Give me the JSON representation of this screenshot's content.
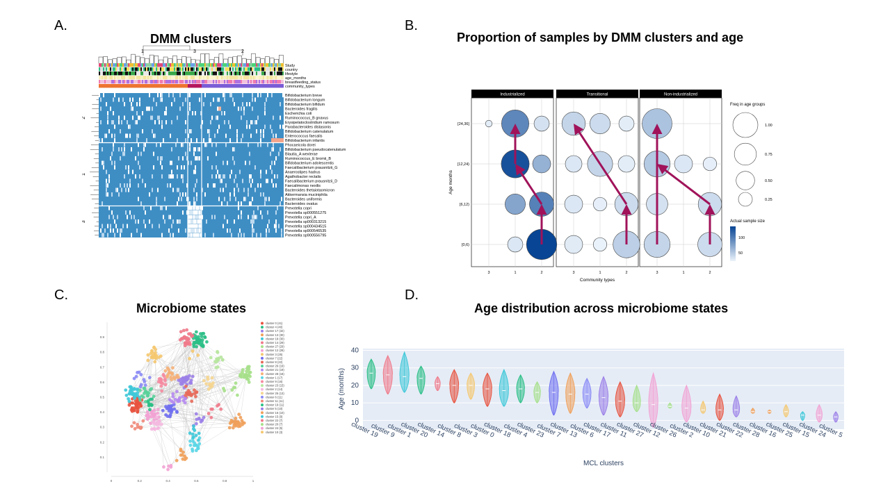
{
  "panels": {
    "a": {
      "letter": "A.",
      "title": "DMM clusters"
    },
    "b": {
      "letter": "B.",
      "title": "Proportion of samples by DMM clusters and age"
    },
    "c": {
      "letter": "C.",
      "title": "Microbiome states"
    },
    "d": {
      "letter": "D.",
      "title": "Age distribution across microbiome states"
    }
  },
  "chart_data": [
    {
      "type": "heatmap",
      "panel": "A",
      "column_clusters": [
        "1",
        "3",
        "2"
      ],
      "row_clusters": [
        "2",
        "1",
        "3"
      ],
      "annotation_rows": [
        "Study",
        "country",
        "lifestyle",
        "age_months",
        "breastfeeding_status",
        "community_types"
      ],
      "taxa": [
        "Bifidobacterium breve",
        "Bifidobacterium longum",
        "Bifidobacterium bifidum",
        "Bacteroides fragilis",
        "Escherichia coli",
        "Ruminococcus_B gnavus",
        "Erysipelatoclostridium ramosum",
        "Parabacteroides distasonis",
        "Bifidobacterium catenulatum",
        "Enterococcus faecalis",
        "Bifidobacterium infantis",
        "Phocaeicola dorei",
        "Bifidobacterium pseudocatenulatum",
        "Blautia_A wexlerae",
        "Ruminococcus_E bromii_B",
        "Bifidobacterium adolescentis",
        "Faecalibacterium prausnitzii_G",
        "Anaerostipes hadrus",
        "Agathobacter rectalis",
        "Faecalibacterium prausnitzii_D",
        "Faecalimonas nexilis",
        "Bacteroides thetaiotaomicron",
        "Akkermansia muciniphila",
        "Bacteroides uniformis",
        "Bacteroides ovatus",
        "Prevotella copri",
        "Prevotella sp000551275",
        "Prevotella copri_A",
        "Prevotella sp000313215",
        "Prevotella sp000434515",
        "Prevotella sp900546535",
        "Prevotella sp900556795"
      ]
    },
    {
      "type": "scatter",
      "panel": "B",
      "facets": [
        "Industrialized",
        "Transitional",
        "Non-industrialized"
      ],
      "x_categories": [
        "3",
        "1",
        "2"
      ],
      "y_categories": [
        "[0,6)",
        "[6,12)",
        "[12,24)",
        "[24,36]"
      ],
      "xlabel": "Community types",
      "ylabel": "Age months",
      "points": [
        {
          "facet": "Industrialized",
          "x": "3",
          "y": "[24,36]",
          "freq": 0.02,
          "n": 10
        },
        {
          "facet": "Industrialized",
          "x": "1",
          "y": "[24,36]",
          "freq": 0.78,
          "n": 95
        },
        {
          "facet": "Industrialized",
          "x": "2",
          "y": "[24,36]",
          "freq": 0.2,
          "n": 20
        },
        {
          "facet": "Industrialized",
          "x": "1",
          "y": "[12,24)",
          "freq": 0.82,
          "n": 140
        },
        {
          "facet": "Industrialized",
          "x": "2",
          "y": "[12,24)",
          "freq": 0.3,
          "n": 60
        },
        {
          "facet": "Industrialized",
          "x": "1",
          "y": "[6,12)",
          "freq": 0.4,
          "n": 70
        },
        {
          "facet": "Industrialized",
          "x": "2",
          "y": "[6,12)",
          "freq": 0.6,
          "n": 100
        },
        {
          "facet": "Industrialized",
          "x": "1",
          "y": "[0,6)",
          "freq": 0.2,
          "n": 15
        },
        {
          "facet": "Industrialized",
          "x": "2",
          "y": "[0,6)",
          "freq": 0.98,
          "n": 150
        },
        {
          "facet": "Transitional",
          "x": "3",
          "y": "[24,36]",
          "freq": 0.55,
          "n": 30
        },
        {
          "facet": "Transitional",
          "x": "1",
          "y": "[24,36]",
          "freq": 0.4,
          "n": 25
        },
        {
          "facet": "Transitional",
          "x": "2",
          "y": "[24,36]",
          "freq": 0.2,
          "n": 10
        },
        {
          "facet": "Transitional",
          "x": "3",
          "y": "[12,24)",
          "freq": 0.25,
          "n": 15
        },
        {
          "facet": "Transitional",
          "x": "1",
          "y": "[12,24)",
          "freq": 0.65,
          "n": 30
        },
        {
          "facet": "Transitional",
          "x": "2",
          "y": "[12,24)",
          "freq": 0.25,
          "n": 10
        },
        {
          "facet": "Transitional",
          "x": "3",
          "y": "[6,12)",
          "freq": 0.3,
          "n": 15
        },
        {
          "facet": "Transitional",
          "x": "1",
          "y": "[6,12)",
          "freq": 0.15,
          "n": 8
        },
        {
          "facet": "Transitional",
          "x": "2",
          "y": "[6,12)",
          "freq": 0.55,
          "n": 25
        },
        {
          "facet": "Transitional",
          "x": "3",
          "y": "[0,6)",
          "freq": 0.3,
          "n": 12
        },
        {
          "facet": "Transitional",
          "x": "1",
          "y": "[0,6)",
          "freq": 0.15,
          "n": 6
        },
        {
          "facet": "Transitional",
          "x": "2",
          "y": "[0,6)",
          "freq": 0.75,
          "n": 35
        },
        {
          "facet": "Non-industrialized",
          "x": "3",
          "y": "[24,36]",
          "freq": 0.95,
          "n": 45
        },
        {
          "facet": "Non-industrialized",
          "x": "3",
          "y": "[12,24)",
          "freq": 0.7,
          "n": 40
        },
        {
          "facet": "Non-industrialized",
          "x": "1",
          "y": "[12,24)",
          "freq": 0.3,
          "n": 15
        },
        {
          "facet": "Non-industrialized",
          "x": "2",
          "y": "[12,24)",
          "freq": 0.15,
          "n": 8
        },
        {
          "facet": "Non-industrialized",
          "x": "3",
          "y": "[6,12)",
          "freq": 0.45,
          "n": 20
        },
        {
          "facet": "Non-industrialized",
          "x": "2",
          "y": "[6,12)",
          "freq": 0.55,
          "n": 25
        },
        {
          "facet": "Non-industrialized",
          "x": "3",
          "y": "[0,6)",
          "freq": 0.7,
          "n": 30
        },
        {
          "facet": "Non-industrialized",
          "x": "2",
          "y": "[0,6)",
          "freq": 0.6,
          "n": 25
        }
      ],
      "arrows": [
        {
          "facet": "Industrialized",
          "from": [
            "2",
            "[0,6)"
          ],
          "to": [
            "2",
            "[6,12)"
          ]
        },
        {
          "facet": "Industrialized",
          "from": [
            "2",
            "[6,12)"
          ],
          "to": [
            "1",
            "[12,24)"
          ]
        },
        {
          "facet": "Industrialized",
          "from": [
            "1",
            "[12,24)"
          ],
          "to": [
            "1",
            "[24,36]"
          ]
        },
        {
          "facet": "Transitional",
          "from": [
            "2",
            "[0,6)"
          ],
          "to": [
            "2",
            "[6,12)"
          ]
        },
        {
          "facet": "Transitional",
          "from": [
            "2",
            "[6,12)"
          ],
          "to": [
            "3",
            "[24,36]"
          ]
        },
        {
          "facet": "Non-industrialized",
          "from": [
            "3",
            "[0,6)"
          ],
          "to": [
            "3",
            "[24,36]"
          ]
        },
        {
          "facet": "Non-industrialized",
          "from": [
            "2",
            "[0,6)"
          ],
          "to": [
            "2",
            "[6,12)"
          ]
        },
        {
          "facet": "Non-industrialized",
          "from": [
            "2",
            "[6,12)"
          ],
          "to": [
            "3",
            "[12,24)"
          ]
        }
      ],
      "size_legend": {
        "title": "Freq in age groups",
        "values": [
          1.0,
          0.75,
          0.5,
          0.25
        ],
        "labels": [
          "1.00",
          "0.75",
          "0.50",
          "0.25"
        ]
      },
      "color_legend": {
        "title": "Actual sample size",
        "ticks": [
          100,
          50
        ],
        "labels": [
          "100",
          "50"
        ]
      },
      "arrow_color": "#a0135a"
    },
    {
      "type": "scatter",
      "panel": "C",
      "xlim": [
        0,
        1
      ],
      "ylim": [
        0,
        1
      ],
      "x_ticks": [
        "0",
        "0.2",
        "0.4",
        "0.6",
        "0.8",
        "1"
      ],
      "y_ticks": [
        "0.1",
        "0.2",
        "0.3",
        "0.4",
        "0.5",
        "0.6",
        "0.7",
        "0.8",
        "0.9"
      ],
      "legend": [
        {
          "label": "cluster 0 (41)",
          "color": "#e8533f"
        },
        {
          "label": "cluster 4 (40)",
          "color": "#2bbf86"
        },
        {
          "label": "cluster 17 (32)",
          "color": "#9b7fe8"
        },
        {
          "label": "cluster 13 (30)",
          "color": "#f0a05a"
        },
        {
          "label": "cluster 18 (30)",
          "color": "#3fc8d8"
        },
        {
          "label": "cluster 14 (29)",
          "color": "#f07a8a"
        },
        {
          "label": "cluster 27 (29)",
          "color": "#a6e08a"
        },
        {
          "label": "cluster 12 (28)",
          "color": "#f2a3d4"
        },
        {
          "label": "cluster 3 (25)",
          "color": "#f5c870"
        },
        {
          "label": "cluster 7 (22)",
          "color": "#6f6ff0"
        },
        {
          "label": "cluster 8 (22)",
          "color": "#e86a5a"
        },
        {
          "label": "cluster 26 (19)",
          "color": "#5ad19a"
        },
        {
          "label": "cluster 21 (19)",
          "color": "#b58af0"
        },
        {
          "label": "cluster 28 (18)",
          "color": "#f5b078"
        },
        {
          "label": "cluster 1 (17)",
          "color": "#5ad6e6"
        },
        {
          "label": "cluster 9 (16)",
          "color": "#f58aa0"
        },
        {
          "label": "cluster 23 (15)",
          "color": "#b8e6a0"
        },
        {
          "label": "cluster 2 (14)",
          "color": "#f5b8e0"
        },
        {
          "label": "cluster 25 (13)",
          "color": "#f5d590"
        },
        {
          "label": "cluster 6 (11)",
          "color": "#8a8af5"
        },
        {
          "label": "cluster 11 (11)",
          "color": "#f08a7a"
        },
        {
          "label": "cluster 19 (11)",
          "color": "#2bbf86"
        },
        {
          "label": "cluster 5 (10)",
          "color": "#9b7fe8"
        },
        {
          "label": "cluster 16 (10)",
          "color": "#f0a05a"
        },
        {
          "label": "cluster 15 (9)",
          "color": "#3fc8d8"
        },
        {
          "label": "cluster 22 (7)",
          "color": "#f07a8a"
        },
        {
          "label": "cluster 20 (7)",
          "color": "#a6e08a"
        },
        {
          "label": "cluster 24 (5)",
          "color": "#f2a3d4"
        },
        {
          "label": "cluster 10 (3)",
          "color": "#f5c870"
        }
      ]
    },
    {
      "type": "violin",
      "panel": "D",
      "xlabel": "MCL clusters",
      "ylabel": "Age (months)",
      "ylim": [
        -5,
        41
      ],
      "y_ticks": [
        0,
        10,
        20,
        30,
        40
      ],
      "categories": [
        "cluster 19",
        "cluster 9",
        "cluster 1",
        "cluster 20",
        "cluster 14",
        "cluster 8",
        "cluster 3",
        "cluster 0",
        "cluster 18",
        "cluster 4",
        "cluster 23",
        "cluster 7",
        "cluster 13",
        "cluster 6",
        "cluster 17",
        "cluster 11",
        "cluster 27",
        "cluster 12",
        "cluster 26",
        "cluster 2",
        "cluster 10",
        "cluster 21",
        "cluster 22",
        "cluster 28",
        "cluster 16",
        "cluster 25",
        "cluster 15",
        "cluster 24",
        "cluster 5"
      ],
      "colors": [
        "#2bbf86",
        "#f07a8a",
        "#3fc8d8",
        "#2bbf86",
        "#f07a8a",
        "#e8533f",
        "#f5c870",
        "#e8533f",
        "#3fc8d8",
        "#2bbf86",
        "#a6e08a",
        "#6f6ff0",
        "#f0a05a",
        "#8a8af5",
        "#9b7fe8",
        "#e8533f",
        "#a6e08a",
        "#f2a3d4",
        "#a6e08a",
        "#f2a3d4",
        "#f5c870",
        "#e8533f",
        "#9b7fe8",
        "#f0a05a",
        "#f0a05a",
        "#f5c870",
        "#3fc8d8",
        "#f2a3d4",
        "#9b7fe8"
      ],
      "min": [
        18,
        15,
        16,
        15,
        17,
        10,
        12,
        8,
        8,
        10,
        10,
        3,
        4,
        7,
        3,
        2,
        5,
        -4,
        7,
        -1,
        4,
        0,
        2,
        4,
        4,
        2,
        0,
        -1,
        -1
      ],
      "max": [
        35,
        37,
        39,
        31,
        25,
        29,
        27,
        27,
        29,
        26,
        22,
        28,
        27,
        24,
        25,
        22,
        20,
        27,
        10,
        20,
        11,
        15,
        14,
        7,
        6,
        9,
        5,
        9,
        5
      ],
      "median": [
        27,
        26,
        25,
        24,
        21,
        20,
        20,
        18,
        17,
        18,
        16,
        16,
        15,
        15,
        13,
        11,
        10,
        9,
        8,
        7,
        6,
        6,
        6,
        5,
        5,
        5,
        3,
        3,
        2
      ]
    }
  ]
}
